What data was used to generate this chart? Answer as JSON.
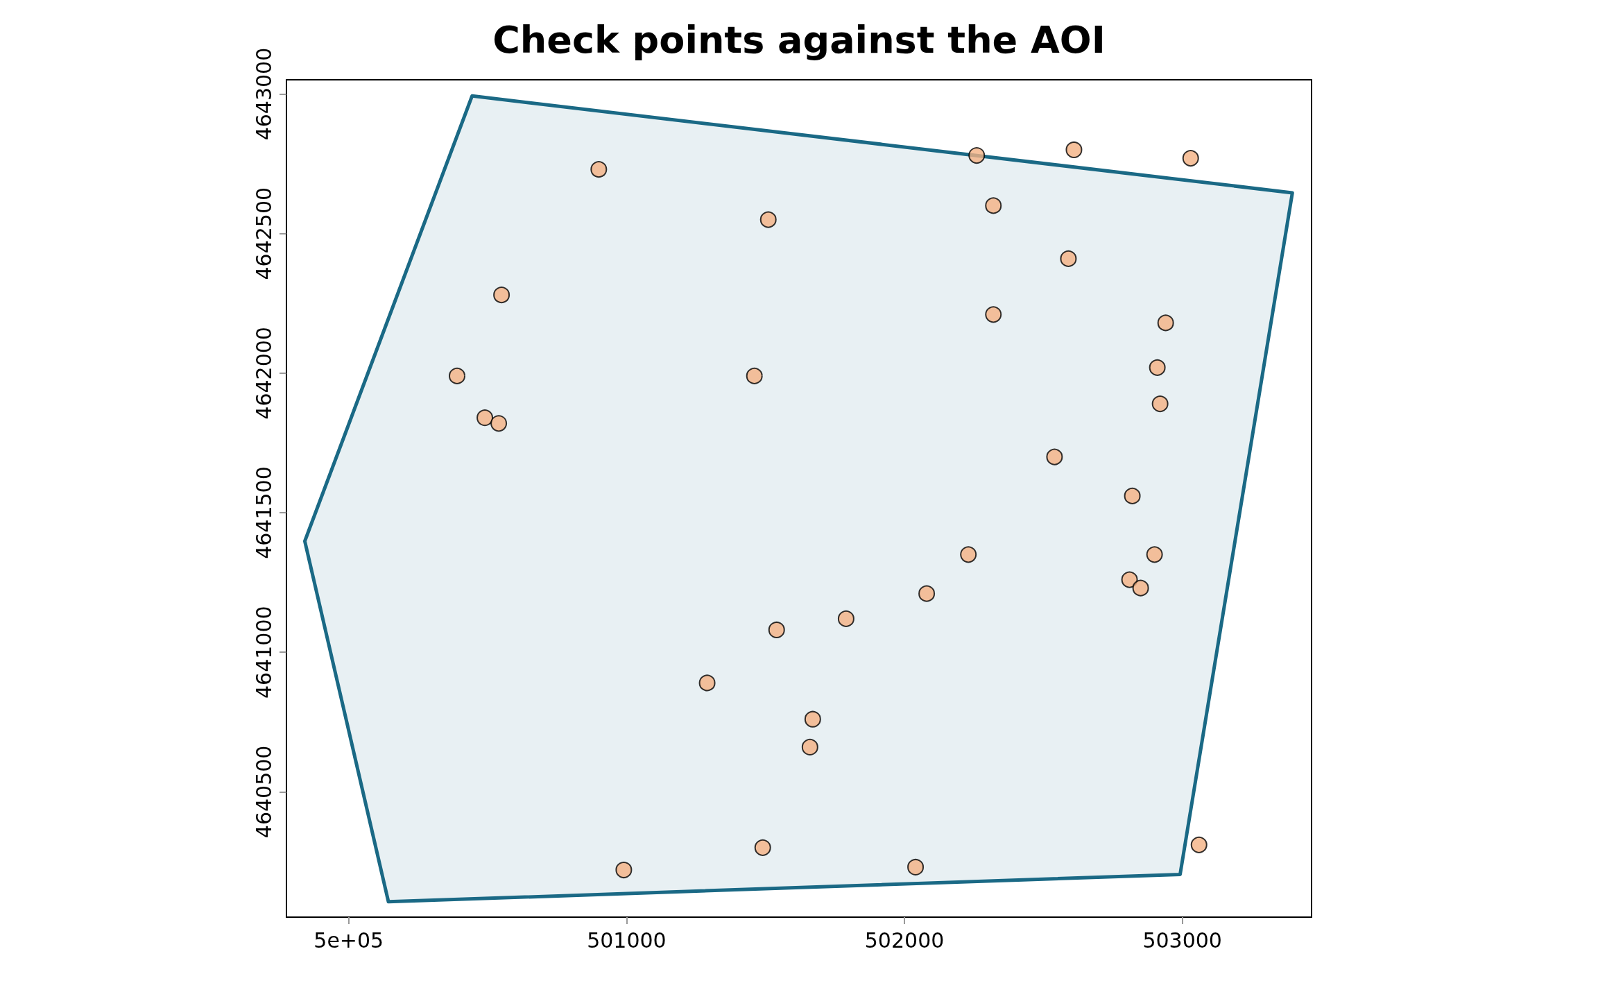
{
  "chart_data": {
    "type": "scatter",
    "title": "Check points against the AOI",
    "xlim": [
      499776,
      503465
    ],
    "ylim": [
      4640051,
      4643051
    ],
    "xticks": [
      {
        "value": 500000,
        "label": "5e+05"
      },
      501000,
      502000,
      503000
    ],
    "yticks": [
      4640500,
      4641000,
      4641500,
      4642000,
      4642500,
      4643000
    ],
    "grid": false,
    "series": [
      {
        "type": "area",
        "color": "#1a6985",
        "x": [
          500444,
          503396,
          502992,
          500143,
          499842,
          500444
        ],
        "values": [
          4642993,
          4642646,
          4640204,
          4640106,
          4641398,
          4642993
        ]
      },
      {
        "marker": "circle",
        "color": "#f4b183",
        "x": [
          500900,
          501510,
          500550,
          500390,
          500490,
          500540,
          501460,
          502260,
          502610,
          503030,
          502320,
          502590,
          502320,
          502940,
          502910,
          502920,
          502540,
          502820,
          502230,
          502900,
          502810,
          502850,
          502080,
          501790,
          501540,
          501290,
          501670,
          501660,
          501490,
          500990,
          502040,
          503060
        ],
        "values": [
          4642730,
          4642550,
          4642280,
          4641990,
          4641840,
          4641820,
          4641990,
          4642780,
          4642800,
          4642770,
          4642600,
          4642410,
          4642210,
          4642180,
          4642020,
          4641890,
          4641700,
          4641560,
          4641350,
          4641350,
          4641260,
          4641230,
          4641210,
          4641120,
          4641080,
          4640890,
          4640760,
          4640660,
          4640300,
          4640220,
          4640230,
          4640310
        ]
      }
    ]
  }
}
